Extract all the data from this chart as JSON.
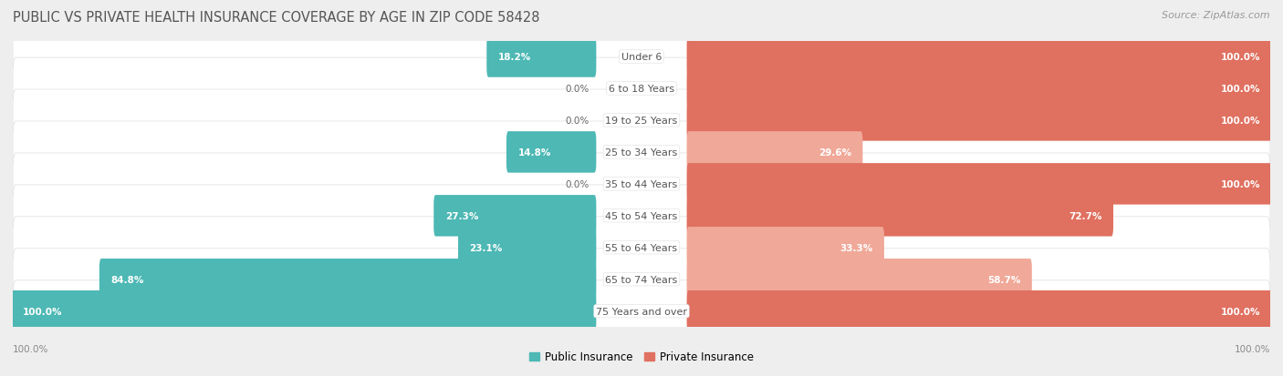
{
  "title": "PUBLIC VS PRIVATE HEALTH INSURANCE COVERAGE BY AGE IN ZIP CODE 58428",
  "source": "Source: ZipAtlas.com",
  "categories": [
    "Under 6",
    "6 to 18 Years",
    "19 to 25 Years",
    "25 to 34 Years",
    "35 to 44 Years",
    "45 to 54 Years",
    "55 to 64 Years",
    "65 to 74 Years",
    "75 Years and over"
  ],
  "public_values": [
    18.2,
    0.0,
    0.0,
    14.8,
    0.0,
    27.3,
    23.1,
    84.8,
    100.0
  ],
  "private_values": [
    100.0,
    100.0,
    100.0,
    29.6,
    100.0,
    72.7,
    33.3,
    58.7,
    100.0
  ],
  "public_color": "#4db8b4",
  "private_color_full": "#e07060",
  "private_color_partial": "#f0a898",
  "row_bg_color": "#f5f5f5",
  "row_border_color": "#dddddd",
  "fig_bg_color": "#eeeeee",
  "title_color": "#555555",
  "label_color": "#555555",
  "value_color_inside": "#ffffff",
  "value_color_outside": "#666666",
  "axis_label_color": "#888888",
  "source_color": "#999999",
  "title_fontsize": 10.5,
  "label_fontsize": 8.0,
  "value_fontsize": 7.5,
  "legend_fontsize": 8.5,
  "source_fontsize": 8.0
}
